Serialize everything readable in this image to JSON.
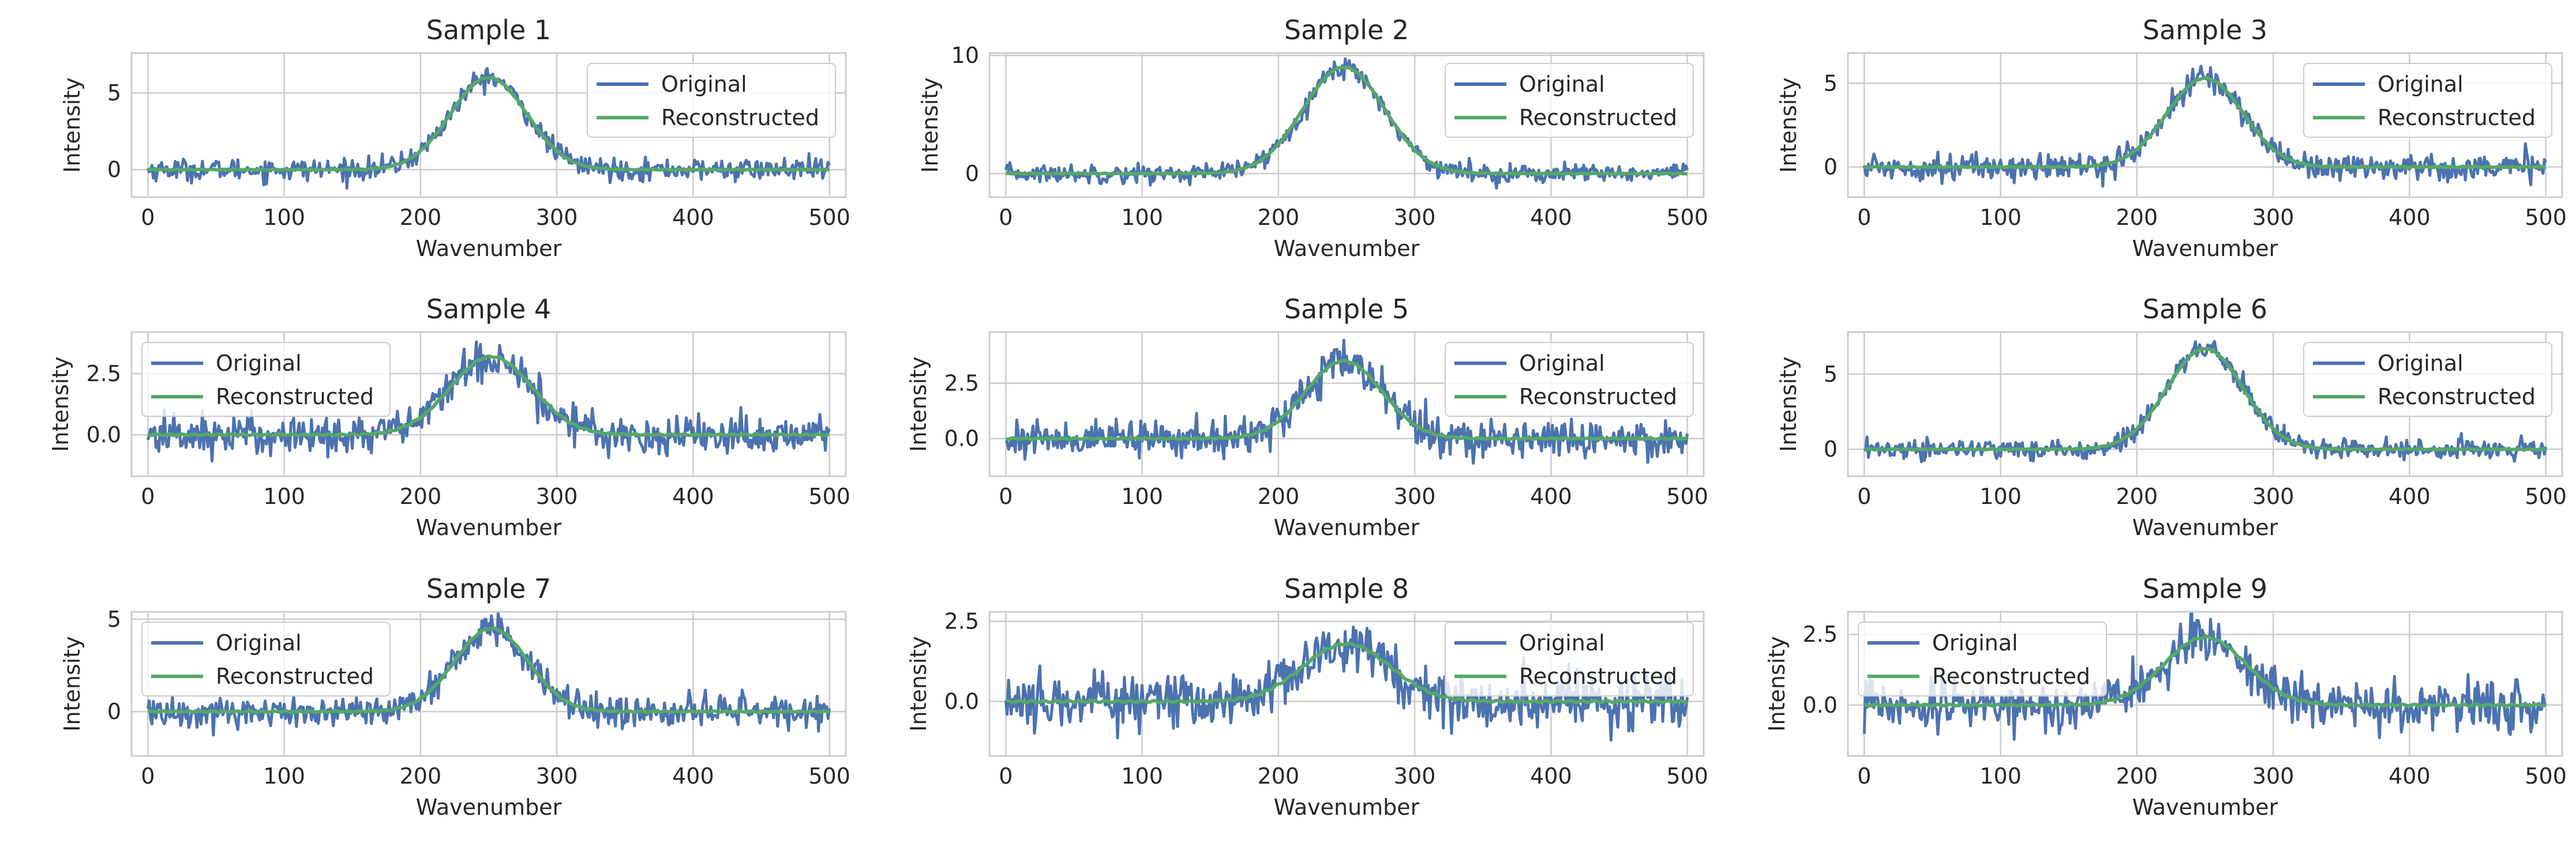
{
  "figure": {
    "background": "#ffffff",
    "axes_face": "#ffffff",
    "grid_color": "#cccccc",
    "spine_color": "#cccccc"
  },
  "chart_data": [
    {
      "type": "line",
      "title": "Sample 1",
      "xlabel": "Wavenumber",
      "ylabel": "Intensity",
      "xlim": [
        -12,
        512
      ],
      "ylim": [
        -1.8,
        7.6
      ],
      "xticks": [
        0,
        100,
        200,
        300,
        400,
        500
      ],
      "xtick_labels": [
        "0",
        "100",
        "200",
        "300",
        "400",
        "500"
      ],
      "yticks": [
        0,
        5
      ],
      "ytick_labels": [
        "0",
        "5"
      ],
      "legend": "upper right",
      "grid": true,
      "signal": {
        "n_points": 500,
        "peak_center": 250,
        "peak_width": 28,
        "peak_height": 6.0,
        "noise_std": 0.35
      },
      "series": [
        {
          "name": "Original",
          "color": "#4c72b0",
          "kind": "noisy"
        },
        {
          "name": "Reconstructed",
          "color": "#55a868",
          "kind": "smooth"
        }
      ]
    },
    {
      "type": "line",
      "title": "Sample 2",
      "xlabel": "Wavenumber",
      "ylabel": "Intensity",
      "xlim": [
        -12,
        512
      ],
      "ylim": [
        -2.0,
        10.2
      ],
      "xticks": [
        0,
        100,
        200,
        300,
        400,
        500
      ],
      "xtick_labels": [
        "0",
        "100",
        "200",
        "300",
        "400",
        "500"
      ],
      "yticks": [
        0,
        10
      ],
      "ytick_labels": [
        "0",
        "10"
      ],
      "legend": "upper right",
      "grid": true,
      "signal": {
        "n_points": 500,
        "peak_center": 248,
        "peak_width": 30,
        "peak_height": 9.0,
        "noise_std": 0.4
      },
      "series": [
        {
          "name": "Original",
          "color": "#4c72b0",
          "kind": "noisy"
        },
        {
          "name": "Reconstructed",
          "color": "#55a868",
          "kind": "smooth"
        }
      ]
    },
    {
      "type": "line",
      "title": "Sample 3",
      "xlabel": "Wavenumber",
      "ylabel": "Intensity",
      "xlim": [
        -12,
        512
      ],
      "ylim": [
        -1.8,
        6.8
      ],
      "xticks": [
        0,
        100,
        200,
        300,
        400,
        500
      ],
      "xtick_labels": [
        "0",
        "100",
        "200",
        "300",
        "400",
        "500"
      ],
      "yticks": [
        0,
        5
      ],
      "ytick_labels": [
        "0",
        "5"
      ],
      "legend": "upper right",
      "grid": true,
      "signal": {
        "n_points": 500,
        "peak_center": 250,
        "peak_width": 28,
        "peak_height": 5.3,
        "noise_std": 0.4
      },
      "series": [
        {
          "name": "Original",
          "color": "#4c72b0",
          "kind": "noisy"
        },
        {
          "name": "Reconstructed",
          "color": "#55a868",
          "kind": "smooth"
        }
      ]
    },
    {
      "type": "line",
      "title": "Sample 4",
      "xlabel": "Wavenumber",
      "ylabel": "Intensity",
      "xlim": [
        -12,
        512
      ],
      "ylim": [
        -1.7,
        4.2
      ],
      "xticks": [
        0,
        100,
        200,
        300,
        400,
        500
      ],
      "xtick_labels": [
        "0",
        "100",
        "200",
        "300",
        "400",
        "500"
      ],
      "yticks": [
        0.0,
        2.5
      ],
      "ytick_labels": [
        "0.0",
        "2.5"
      ],
      "legend": "upper left",
      "grid": true,
      "signal": {
        "n_points": 500,
        "peak_center": 252,
        "peak_width": 30,
        "peak_height": 3.2,
        "noise_std": 0.42
      },
      "series": [
        {
          "name": "Original",
          "color": "#4c72b0",
          "kind": "noisy"
        },
        {
          "name": "Reconstructed",
          "color": "#55a868",
          "kind": "smooth"
        }
      ]
    },
    {
      "type": "line",
      "title": "Sample 5",
      "xlabel": "Wavenumber",
      "ylabel": "Intensity",
      "xlim": [
        -12,
        512
      ],
      "ylim": [
        -1.7,
        4.8
      ],
      "xticks": [
        0,
        100,
        200,
        300,
        400,
        500
      ],
      "xtick_labels": [
        "0",
        "100",
        "200",
        "300",
        "400",
        "500"
      ],
      "yticks": [
        0.0,
        2.5
      ],
      "ytick_labels": [
        "0.0",
        "2.5"
      ],
      "legend": "upper right",
      "grid": true,
      "signal": {
        "n_points": 500,
        "peak_center": 248,
        "peak_width": 28,
        "peak_height": 3.5,
        "noise_std": 0.42
      },
      "series": [
        {
          "name": "Original",
          "color": "#4c72b0",
          "kind": "noisy"
        },
        {
          "name": "Reconstructed",
          "color": "#55a868",
          "kind": "smooth"
        }
      ]
    },
    {
      "type": "line",
      "title": "Sample 6",
      "xlabel": "Wavenumber",
      "ylabel": "Intensity",
      "xlim": [
        -12,
        512
      ],
      "ylim": [
        -1.8,
        7.8
      ],
      "xticks": [
        0,
        100,
        200,
        300,
        400,
        500
      ],
      "xtick_labels": [
        "0",
        "100",
        "200",
        "300",
        "400",
        "500"
      ],
      "yticks": [
        0,
        5
      ],
      "ytick_labels": [
        "0",
        "5"
      ],
      "legend": "upper right",
      "grid": true,
      "signal": {
        "n_points": 500,
        "peak_center": 250,
        "peak_width": 28,
        "peak_height": 6.7,
        "noise_std": 0.35
      },
      "series": [
        {
          "name": "Original",
          "color": "#4c72b0",
          "kind": "noisy"
        },
        {
          "name": "Reconstructed",
          "color": "#55a868",
          "kind": "smooth"
        }
      ]
    },
    {
      "type": "line",
      "title": "Sample 7",
      "xlabel": "Wavenumber",
      "ylabel": "Intensity",
      "xlim": [
        -12,
        512
      ],
      "ylim": [
        -2.4,
        5.4
      ],
      "xticks": [
        0,
        100,
        200,
        300,
        400,
        500
      ],
      "xtick_labels": [
        "0",
        "100",
        "200",
        "300",
        "400",
        "500"
      ],
      "yticks": [
        0,
        5
      ],
      "ytick_labels": [
        "0",
        "5"
      ],
      "legend": "upper left",
      "grid": true,
      "signal": {
        "n_points": 500,
        "peak_center": 252,
        "peak_width": 27,
        "peak_height": 4.5,
        "noise_std": 0.45
      },
      "series": [
        {
          "name": "Original",
          "color": "#4c72b0",
          "kind": "noisy"
        },
        {
          "name": "Reconstructed",
          "color": "#55a868",
          "kind": "smooth"
        }
      ]
    },
    {
      "type": "line",
      "title": "Sample 8",
      "xlabel": "Wavenumber",
      "ylabel": "Intensity",
      "xlim": [
        -12,
        512
      ],
      "ylim": [
        -1.7,
        2.8
      ],
      "xticks": [
        0,
        100,
        200,
        300,
        400,
        500
      ],
      "xtick_labels": [
        "0",
        "100",
        "200",
        "300",
        "400",
        "500"
      ],
      "yticks": [
        0.0,
        2.5
      ],
      "ytick_labels": [
        "0.0",
        "2.5"
      ],
      "legend": "upper right",
      "grid": true,
      "signal": {
        "n_points": 500,
        "peak_center": 250,
        "peak_width": 32,
        "peak_height": 1.8,
        "noise_std": 0.45
      },
      "series": [
        {
          "name": "Original",
          "color": "#4c72b0",
          "kind": "noisy"
        },
        {
          "name": "Reconstructed",
          "color": "#55a868",
          "kind": "smooth"
        }
      ]
    },
    {
      "type": "line",
      "title": "Sample 9",
      "xlabel": "Wavenumber",
      "ylabel": "Intensity",
      "xlim": [
        -12,
        512
      ],
      "ylim": [
        -1.8,
        3.3
      ],
      "xticks": [
        0,
        100,
        200,
        300,
        400,
        500
      ],
      "xtick_labels": [
        "0",
        "100",
        "200",
        "300",
        "400",
        "500"
      ],
      "yticks": [
        0.0,
        2.5
      ],
      "ytick_labels": [
        "0.0",
        "2.5"
      ],
      "legend": "upper left",
      "grid": true,
      "signal": {
        "n_points": 500,
        "peak_center": 250,
        "peak_width": 30,
        "peak_height": 2.4,
        "noise_std": 0.42
      },
      "series": [
        {
          "name": "Original",
          "color": "#4c72b0",
          "kind": "noisy"
        },
        {
          "name": "Reconstructed",
          "color": "#55a868",
          "kind": "smooth"
        }
      ]
    }
  ]
}
